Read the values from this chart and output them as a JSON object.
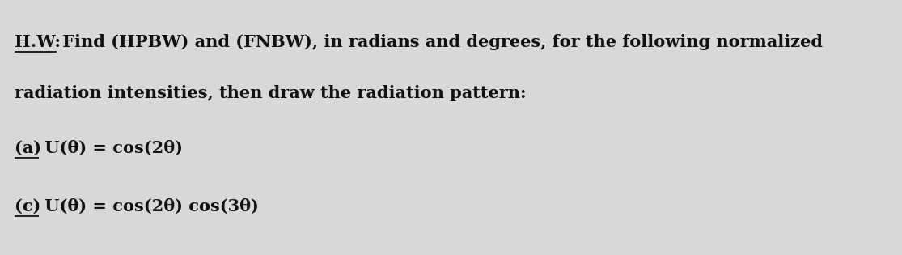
{
  "background_color": "#d8d8d8",
  "text_color": "#111111",
  "hw_label": "H.W:",
  "rest_line1": " Find (HPBW) and (FNBW), in radians and degrees, for the following normalized",
  "line2": "radiation intensities, then draw the radiation pattern:",
  "label_a": "(a)",
  "eq_a": " U(θ) = cos(2θ)",
  "label_c": "(c)",
  "eq_c": " U(θ) = cos(2θ) cos(3θ)",
  "font_size": 15,
  "font_family": "DejaVu Serif",
  "fig_width": 11.15,
  "fig_height": 3.15,
  "dpi": 100
}
